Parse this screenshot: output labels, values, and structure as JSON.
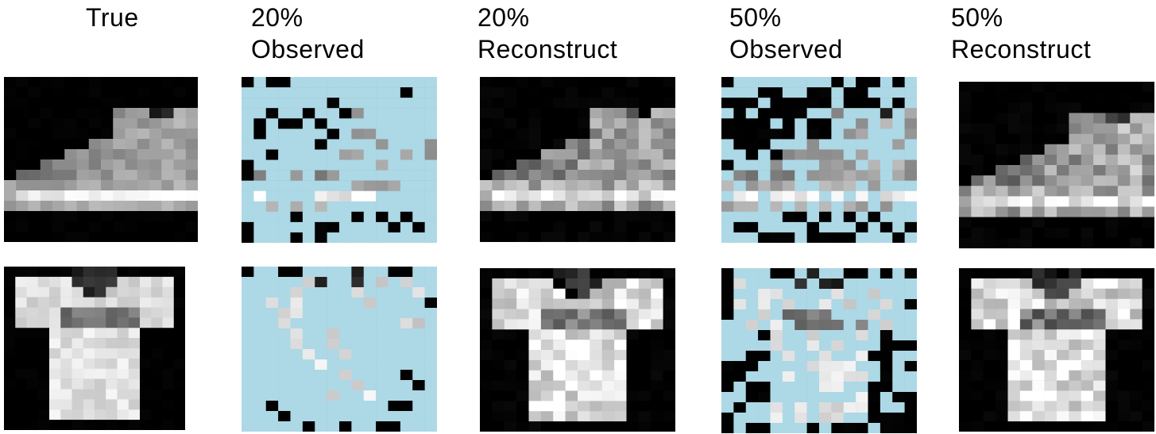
{
  "columns": [
    {
      "label_line1": "True",
      "label_line2": ""
    },
    {
      "label_line1": "20%",
      "label_line2": "Observed"
    },
    {
      "label_line1": "20%",
      "label_line2": "Reconstruct"
    },
    {
      "label_line1": "50%",
      "label_line2": "Observed"
    },
    {
      "label_line1": "50%",
      "label_line2": "Reconstruct"
    }
  ],
  "rows": [
    {
      "subject": "ankle-boot"
    },
    {
      "subject": "t-shirt"
    }
  ],
  "colors": {
    "missing_pixel": "#add8e6",
    "background": "#000000",
    "page": "#ffffff"
  },
  "grid_size": 16,
  "observed_fraction": [
    0.2,
    0.2,
    0.5,
    0.5
  ]
}
